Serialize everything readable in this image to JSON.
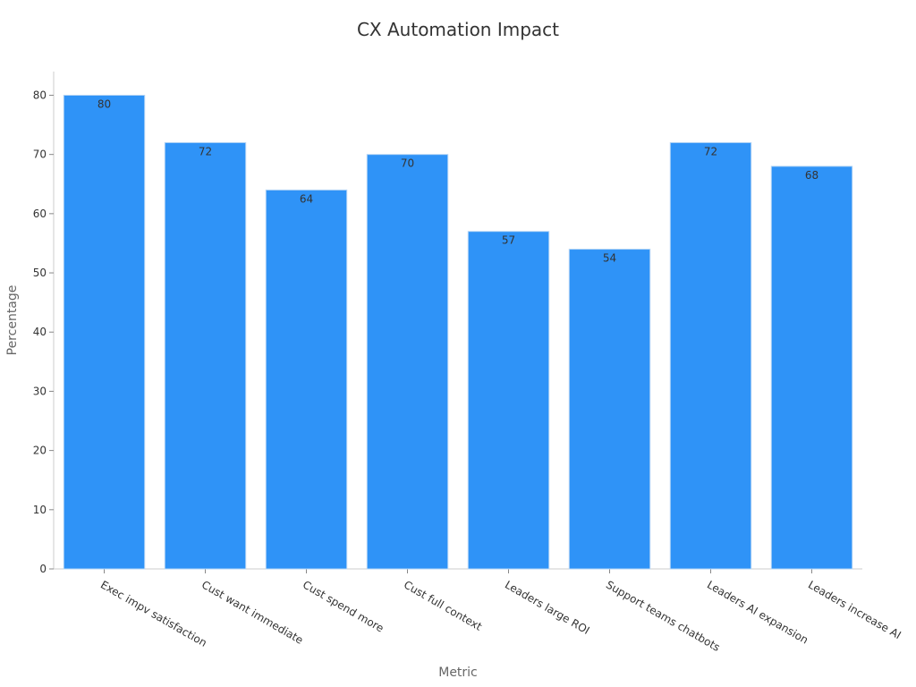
{
  "chart_data": {
    "type": "bar",
    "title": "CX Automation Impact",
    "xlabel": "Metric",
    "ylabel": "Percentage",
    "categories": [
      "Exec impv satisfaction",
      "Cust want immediate",
      "Cust spend more",
      "Cust full context",
      "Leaders large ROI",
      "Support teams chatbots",
      "Leaders AI expansion",
      "Leaders increase AI"
    ],
    "values": [
      80,
      72,
      64,
      70,
      57,
      54,
      72,
      68
    ],
    "ylim": [
      0,
      84
    ],
    "yticks": [
      0,
      10,
      20,
      30,
      40,
      50,
      60,
      70,
      80
    ],
    "grid": false,
    "legend": "none",
    "data_labels": true,
    "colors": {
      "bar": "#2f93f7",
      "bar_border": "#b3d4f5"
    }
  }
}
